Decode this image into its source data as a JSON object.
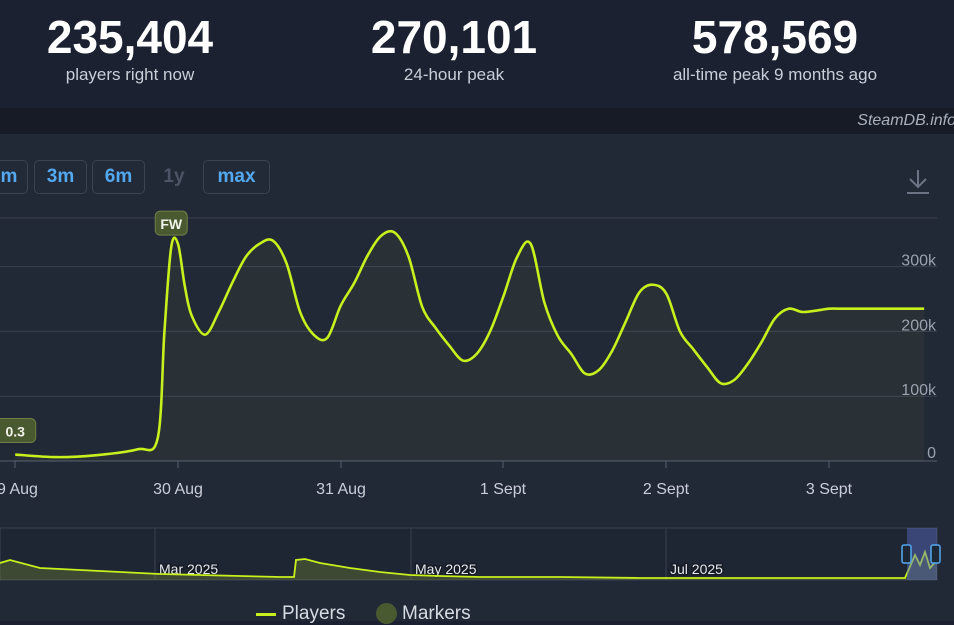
{
  "stats": {
    "current": {
      "value": "235,404",
      "label": "players right now"
    },
    "peak24": {
      "value": "270,101",
      "label": "24-hour peak"
    },
    "alltime": {
      "value": "578,569",
      "label": "all-time peak 9 months ago"
    }
  },
  "brand": "SteamDB.info",
  "zoom_buttons": [
    {
      "label": "m",
      "enabled": true
    },
    {
      "label": "3m",
      "enabled": true
    },
    {
      "label": "6m",
      "enabled": true
    },
    {
      "label": "1y",
      "enabled": false
    },
    {
      "label": "max",
      "enabled": true
    }
  ],
  "colors": {
    "line": "#c7f01c",
    "marker": "#4a5a30",
    "grid": "#3a4150",
    "background": "#212836"
  },
  "legend": {
    "players": "Players",
    "markers": "Markers"
  },
  "navigator_labels": [
    "Mar 2025",
    "May 2025",
    "Jul 2025"
  ],
  "chart_data": {
    "type": "line",
    "series": [
      {
        "name": "Players",
        "x": [
          "29 Aug 00:00",
          "29 Aug 06:00",
          "29 Aug 12:00",
          "29 Aug 18:00",
          "29 Aug 21:00",
          "29 Aug 22:00",
          "29 Aug 23:00",
          "30 Aug 00:00",
          "30 Aug 01:00",
          "30 Aug 02:00",
          "30 Aug 04:00",
          "30 Aug 06:00",
          "30 Aug 08:00",
          "30 Aug 10:00",
          "30 Aug 12:00",
          "30 Aug 14:00",
          "30 Aug 16:00",
          "30 Aug 18:00",
          "30 Aug 20:00",
          "30 Aug 22:00",
          "31 Aug 00:00",
          "31 Aug 02:00",
          "31 Aug 04:00",
          "31 Aug 06:00",
          "31 Aug 08:00",
          "31 Aug 10:00",
          "31 Aug 12:00",
          "31 Aug 14:00",
          "31 Aug 16:00",
          "31 Aug 18:00",
          "31 Aug 20:00",
          "31 Aug 22:00",
          "1 Sept 00:00",
          "1 Sept 02:00",
          "1 Sept 04:00",
          "1 Sept 06:00",
          "1 Sept 08:00",
          "1 Sept 10:00",
          "1 Sept 12:00",
          "1 Sept 14:00",
          "1 Sept 16:00",
          "1 Sept 18:00",
          "1 Sept 20:00",
          "1 Sept 22:00",
          "2 Sept 00:00",
          "2 Sept 02:00",
          "2 Sept 04:00",
          "2 Sept 06:00",
          "2 Sept 08:00",
          "2 Sept 10:00",
          "2 Sept 12:00",
          "2 Sept 14:00",
          "2 Sept 16:00",
          "2 Sept 18:00",
          "2 Sept 20:00",
          "2 Sept 22:00",
          "3 Sept 00:00",
          "3 Sept 02:00",
          "3 Sept 04:00",
          "3 Sept 06:00",
          "3 Sept 08:00",
          "3 Sept 10:00",
          "3 Sept 12:00",
          "3 Sept 14:00"
        ],
        "values": [
          10000,
          6000,
          9000,
          18000,
          35000,
          200000,
          330000,
          335000,
          270000,
          225000,
          195000,
          230000,
          275000,
          315000,
          335000,
          340000,
          305000,
          230000,
          195000,
          190000,
          240000,
          275000,
          318000,
          348000,
          352000,
          315000,
          238000,
          205000,
          178000,
          155000,
          165000,
          200000,
          255000,
          315000,
          335000,
          245000,
          193000,
          165000,
          135000,
          140000,
          170000,
          215000,
          260000,
          272000,
          258000,
          200000,
          172000,
          145000,
          120000,
          125000,
          150000,
          183000,
          220000,
          235000,
          230000,
          232000,
          235000,
          235000,
          235000,
          235000,
          235000,
          235000,
          235000,
          235000
        ]
      }
    ],
    "x_ticks": [
      "9 Aug",
      "30 Aug",
      "31 Aug",
      "1 Sept",
      "2 Sept",
      "3 Sept"
    ],
    "y_ticks": [
      "0",
      "100k",
      "200k",
      "300k"
    ],
    "ylim": [
      0,
      375000
    ],
    "markers": [
      {
        "label": "0.3",
        "x": "29 Aug 00:00",
        "value": 10000
      },
      {
        "label": "FW",
        "x": "29 Aug 23:00",
        "value": 330000
      }
    ],
    "grid": true,
    "legend_position": "bottom"
  }
}
